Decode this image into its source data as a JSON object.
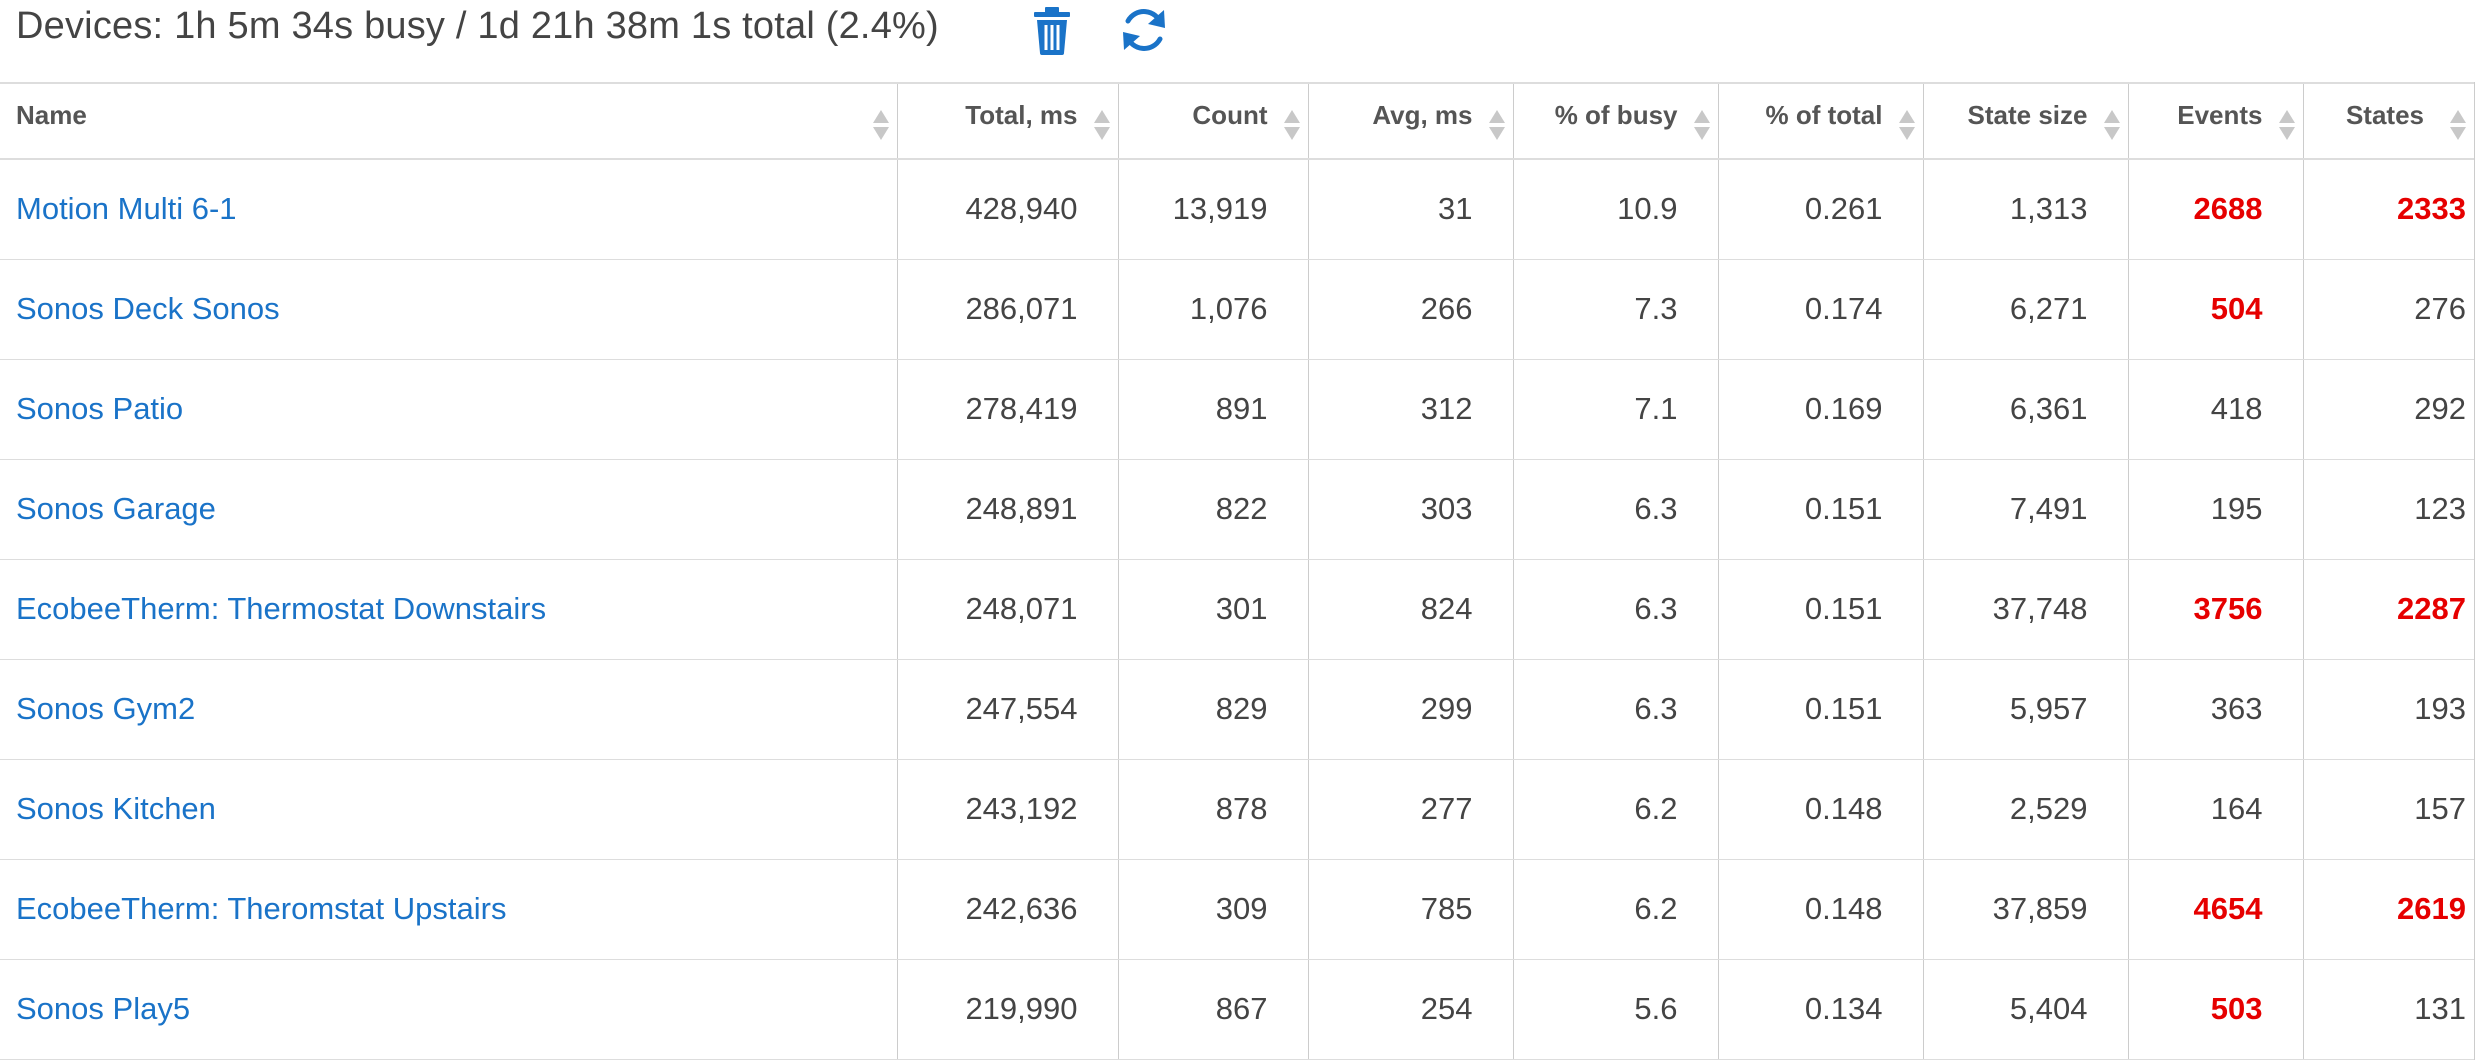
{
  "header": {
    "title": "Devices: 1h 5m 34s busy / 1d 21h 38m 1s total (2.4%)",
    "icons": [
      "trash-icon",
      "refresh-icon"
    ],
    "icon_color": "#1a73c8"
  },
  "table": {
    "columns": [
      "Name",
      "Total, ms",
      "Count",
      "Avg, ms",
      "% of busy",
      "% of total",
      "State size",
      "Events",
      "States"
    ],
    "highlight_color": "#e60000",
    "rows": [
      {
        "name": "Motion Multi 6-1",
        "total": "428,940",
        "count": "13,919",
        "avg": "31",
        "pct_busy": "10.9",
        "pct_total": "0.261",
        "state_size": "1,313",
        "events": "2688",
        "events_hl": true,
        "states": "2333",
        "states_hl": true
      },
      {
        "name": "Sonos Deck Sonos",
        "total": "286,071",
        "count": "1,076",
        "avg": "266",
        "pct_busy": "7.3",
        "pct_total": "0.174",
        "state_size": "6,271",
        "events": "504",
        "events_hl": true,
        "states": "276",
        "states_hl": false
      },
      {
        "name": "Sonos Patio",
        "total": "278,419",
        "count": "891",
        "avg": "312",
        "pct_busy": "7.1",
        "pct_total": "0.169",
        "state_size": "6,361",
        "events": "418",
        "events_hl": false,
        "states": "292",
        "states_hl": false
      },
      {
        "name": "Sonos Garage",
        "total": "248,891",
        "count": "822",
        "avg": "303",
        "pct_busy": "6.3",
        "pct_total": "0.151",
        "state_size": "7,491",
        "events": "195",
        "events_hl": false,
        "states": "123",
        "states_hl": false
      },
      {
        "name": "EcobeeTherm: Thermostat Downstairs",
        "total": "248,071",
        "count": "301",
        "avg": "824",
        "pct_busy": "6.3",
        "pct_total": "0.151",
        "state_size": "37,748",
        "events": "3756",
        "events_hl": true,
        "states": "2287",
        "states_hl": true
      },
      {
        "name": "Sonos Gym2",
        "total": "247,554",
        "count": "829",
        "avg": "299",
        "pct_busy": "6.3",
        "pct_total": "0.151",
        "state_size": "5,957",
        "events": "363",
        "events_hl": false,
        "states": "193",
        "states_hl": false
      },
      {
        "name": "Sonos Kitchen",
        "total": "243,192",
        "count": "878",
        "avg": "277",
        "pct_busy": "6.2",
        "pct_total": "0.148",
        "state_size": "2,529",
        "events": "164",
        "events_hl": false,
        "states": "157",
        "states_hl": false
      },
      {
        "name": "EcobeeTherm: Theromstat Upstairs",
        "total": "242,636",
        "count": "309",
        "avg": "785",
        "pct_busy": "6.2",
        "pct_total": "0.148",
        "state_size": "37,859",
        "events": "4654",
        "events_hl": true,
        "states": "2619",
        "states_hl": true
      },
      {
        "name": "Sonos Play5",
        "total": "219,990",
        "count": "867",
        "avg": "254",
        "pct_busy": "5.6",
        "pct_total": "0.134",
        "state_size": "5,404",
        "events": "503",
        "events_hl": true,
        "states": "131",
        "states_hl": false
      }
    ]
  }
}
